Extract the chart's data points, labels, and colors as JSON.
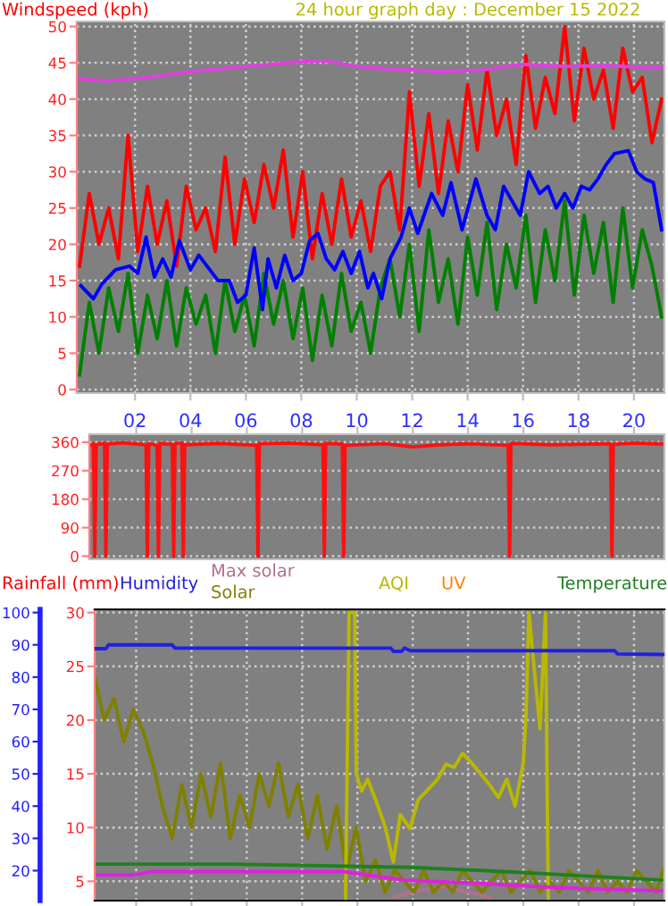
{
  "chart_data": [
    {
      "type": "line",
      "title": "24 hour graph day : December 15 2022",
      "ylabel": "Windspeed (kph)",
      "xlim": [
        -0.1,
        21.1
      ],
      "ylim": [
        -0.5,
        50.7
      ],
      "xticks": [
        {
          "value": 2,
          "label": "02"
        },
        {
          "value": 4,
          "label": "04"
        },
        {
          "value": 6,
          "label": "06"
        },
        {
          "value": 8,
          "label": "08"
        },
        {
          "value": 10,
          "label": "10"
        },
        {
          "value": 12,
          "label": "12"
        },
        {
          "value": 14,
          "label": "14"
        },
        {
          "value": 16,
          "label": "16"
        },
        {
          "value": 18,
          "label": "18"
        },
        {
          "value": 20,
          "label": "20"
        }
      ],
      "yticks": [
        0,
        5,
        10,
        15,
        20,
        25,
        30,
        35,
        40,
        45,
        50
      ],
      "grid": true,
      "x": [
        0,
        0.35,
        0.7,
        1.05,
        1.4,
        1.75,
        2.1,
        2.45,
        2.8,
        3.15,
        3.5,
        3.85,
        4.2,
        4.55,
        4.9,
        5.25,
        5.6,
        5.95,
        6.3,
        6.65,
        7,
        7.35,
        7.7,
        8.05,
        8.4,
        8.75,
        9.1,
        9.45,
        9.8,
        10.15,
        10.5,
        10.85,
        11.2,
        11.55,
        11.9,
        12.25,
        12.6,
        12.95,
        13.3,
        13.65,
        14,
        14.35,
        14.7,
        15.05,
        15.4,
        15.75,
        16.1,
        16.45,
        16.8,
        17.15,
        17.5,
        17.85,
        18.2,
        18.55,
        18.9,
        19.25,
        19.6,
        19.95,
        20.3,
        20.65,
        21
      ],
      "series": [
        {
          "color": "#ff0000",
          "values": [
            17,
            27,
            20,
            25,
            18,
            35,
            19,
            28,
            20,
            26,
            17,
            28,
            22,
            25,
            19,
            32,
            20,
            29,
            23,
            31,
            25,
            33,
            21,
            30,
            18,
            27,
            20,
            29,
            21,
            26,
            19,
            28,
            30,
            22,
            41,
            28,
            38,
            27,
            37,
            30,
            42,
            33,
            44,
            35,
            40,
            31,
            46,
            36,
            43,
            38,
            50,
            37,
            47,
            40,
            44,
            36,
            47,
            41,
            43,
            34,
            40
          ]
        },
        {
          "color": "#008000",
          "values": [
            2,
            12,
            5,
            14,
            8,
            16,
            5,
            13,
            7,
            15,
            6,
            14,
            9,
            13,
            5,
            15,
            8,
            13,
            6,
            16,
            9,
            15,
            7,
            14,
            4,
            13,
            6,
            16,
            8,
            12,
            5,
            14,
            18,
            10,
            20,
            8,
            22,
            12,
            18,
            9,
            21,
            13,
            23,
            11,
            20,
            14,
            24,
            12,
            22,
            15,
            26,
            13,
            24,
            16,
            23,
            12,
            25,
            14,
            22,
            17,
            10
          ]
        },
        {
          "color": "#0000ff",
          "x": [
            0.05,
            0.5,
            0.8,
            1.3,
            1.8,
            2.1,
            2.4,
            2.7,
            3.0,
            3.3,
            3.6,
            4.0,
            4.3,
            4.6,
            5.0,
            5.4,
            5.7,
            6.0,
            6.3,
            6.6,
            6.8,
            7.1,
            7.4,
            7.7,
            8.0,
            8.3,
            8.6,
            8.9,
            9.2,
            9.5,
            9.8,
            10.1,
            10.4,
            10.6,
            10.9,
            11.2,
            11.6,
            11.9,
            12.2,
            12.7,
            13.1,
            13.4,
            13.8,
            14.3,
            14.7,
            15.0,
            15.3,
            15.6,
            15.9,
            16.2,
            16.6,
            16.9,
            17.2,
            17.5,
            17.8,
            18.1,
            18.4,
            18.7,
            19.0,
            19.3,
            19.8,
            20.1,
            20.4,
            20.7,
            21.0
          ],
          "values": [
            14.3,
            12.5,
            14.5,
            16.5,
            17,
            16,
            21,
            15.5,
            18,
            15.5,
            20.5,
            16.5,
            18.5,
            17,
            15,
            15,
            12,
            13,
            19.5,
            11,
            18,
            14,
            18.5,
            15,
            16,
            20.5,
            21.5,
            18,
            16.5,
            19,
            16,
            19,
            14,
            16,
            12.5,
            18,
            21,
            25,
            21.5,
            27,
            24,
            28.5,
            22,
            29,
            24,
            22,
            28,
            26,
            24,
            30,
            27,
            28,
            25,
            27,
            25,
            28,
            27.5,
            29,
            31,
            32.5,
            32.9,
            30,
            29,
            28.5,
            22
          ]
        },
        {
          "color": "#e040e0",
          "x": [
            0,
            1,
            2.5,
            4,
            6,
            7.5,
            8.8,
            10,
            11,
            13,
            14.5,
            16,
            17.5,
            19,
            21
          ],
          "values": [
            42.8,
            42.5,
            43,
            43.8,
            44.5,
            45,
            45.3,
            44.5,
            44.2,
            43.8,
            44,
            44.8,
            44.5,
            44.6,
            44.3
          ]
        }
      ]
    },
    {
      "type": "line",
      "xlim": [
        0.3,
        21.1
      ],
      "ylim": [
        -10,
        385
      ],
      "yticks": [
        0,
        90,
        180,
        270,
        360
      ],
      "grid": "y",
      "tick_labels": "y",
      "xticks": [
        2,
        4,
        6,
        8,
        10,
        12,
        14,
        16,
        18,
        20
      ],
      "series": [
        {
          "color": "#ff1010",
          "x": [
            0.35,
            0.45,
            0.5,
            0.55,
            0.85,
            0.9,
            0.95,
            1.5,
            2.35,
            2.4,
            2.45,
            2.75,
            2.8,
            2.85,
            3.3,
            3.35,
            3.4,
            3.65,
            3.7,
            3.75,
            5,
            6.35,
            6.4,
            6.45,
            7.5,
            8.75,
            8.8,
            8.85,
            9.45,
            9.5,
            9.55,
            11,
            12,
            13,
            14,
            15.45,
            15.5,
            15.55,
            17,
            19.15,
            19.2,
            19.25,
            20,
            21.1
          ],
          "values": [
            350,
            355,
            0,
            352,
            356,
            0,
            354,
            358,
            352,
            0,
            355,
            350,
            0,
            356,
            353,
            0,
            355,
            357,
            0,
            352,
            356,
            350,
            0,
            355,
            357,
            352,
            0,
            356,
            354,
            0,
            350,
            355,
            345,
            352,
            355,
            350,
            0,
            356,
            352,
            355,
            0,
            353,
            357,
            354
          ]
        }
      ]
    },
    {
      "type": "line",
      "ylabel": "Rainfall (mm)",
      "xlim": [
        0.5,
        21.1
      ],
      "ylim": [
        3.2,
        30.3
      ],
      "y2lim": [
        10.7,
        101
      ],
      "xticks": [
        2,
        4,
        6,
        8,
        10,
        12,
        14,
        16,
        18,
        20
      ],
      "yticks": [
        5,
        10,
        15,
        20,
        25,
        30
      ],
      "y2ticks": [
        20,
        30,
        40,
        50,
        60,
        70,
        80,
        90,
        100
      ],
      "grid": true,
      "tick_labels": "y",
      "legend": "top",
      "annotations": [
        "UV"
      ],
      "x": [
        0.5,
        0.85,
        1.2,
        1.55,
        1.9,
        2.25,
        2.6,
        2.95,
        3.3,
        3.65,
        4,
        4.35,
        4.7,
        5.05,
        5.4,
        5.75,
        6.1,
        6.45,
        6.8,
        7.15,
        7.5,
        7.85,
        8.2,
        8.55,
        8.9,
        9.25,
        9.6,
        9.95,
        10.3,
        10.65,
        11,
        11.35,
        11.7,
        12.05,
        12.4,
        12.75,
        13.1,
        13.45,
        13.8,
        14.15,
        14.5,
        14.85,
        15.2,
        15.55,
        15.9,
        16.25,
        16.6,
        16.95,
        17.3,
        17.65,
        18,
        18.35,
        18.7,
        19.05,
        19.4,
        19.75,
        20.1,
        20.45,
        20.8,
        21.05
      ],
      "series": [
        {
          "name": "Humidity",
          "color": "#2020e0",
          "axis": "y2",
          "x": [
            0.5,
            0.9,
            1,
            3.3,
            3.4,
            11.2,
            11.3,
            11.6,
            11.7,
            11.9,
            19.3,
            19.4,
            21.1
          ],
          "values": [
            88.8,
            88.8,
            90,
            90,
            89,
            89,
            88,
            88,
            89,
            88.2,
            88.2,
            87.2,
            87.0
          ]
        },
        {
          "name": "Max solar",
          "color": "#b07090",
          "x": [
            11.3,
            12,
            13,
            14,
            14.8
          ],
          "values": [
            3.5,
            4.0,
            4.5,
            4.0,
            3.5
          ]
        },
        {
          "name": "Solar",
          "color": "#808000",
          "values": [
            24,
            20,
            22,
            18,
            21,
            19,
            16,
            12,
            9,
            14,
            10,
            15,
            11,
            16,
            9,
            13,
            10,
            15,
            12,
            16,
            11,
            14,
            9,
            13,
            8,
            12,
            6,
            10,
            5,
            7,
            4,
            6,
            5,
            4,
            6,
            4,
            5,
            4,
            6,
            5,
            4,
            5,
            6,
            4,
            5,
            6,
            4,
            5,
            4,
            6,
            5,
            4,
            6,
            4,
            5,
            4,
            6,
            5,
            4,
            6
          ]
        },
        {
          "name": "AQI",
          "color": "#b8b800",
          "x": [
            9.57,
            9.7,
            9.9,
            9.96,
            10.15,
            10.37,
            10.7,
            11,
            11.3,
            11.55,
            11.9,
            12.2,
            12.5,
            12.9,
            13.2,
            13.5,
            13.8,
            14.1,
            14.45,
            14.8,
            15.1,
            15.4,
            15.7,
            16,
            16.1,
            16.2,
            16.6,
            16.8,
            16.9
          ],
          "values": [
            3.3,
            30,
            30,
            15.0,
            13.4,
            14.5,
            12.3,
            10.1,
            6.8,
            11.2,
            9.9,
            12.6,
            13.4,
            14.5,
            15.9,
            15.6,
            16.9,
            16.1,
            15.0,
            13.9,
            12.8,
            14.5,
            12.0,
            16.1,
            20.6,
            30,
            19.2,
            30,
            3.3
          ]
        },
        {
          "name": "Temperature",
          "color": "#208020",
          "x": [
            0.5,
            5.5,
            11.9,
            14.5,
            16.1,
            17.5,
            21.1
          ],
          "values": [
            6.6,
            6.6,
            6.3,
            6,
            5.8,
            5.6,
            5.1
          ]
        },
        {
          "color": "#e020e0",
          "x": [
            0.5,
            2,
            2.5,
            9.5,
            11.7,
            14.5,
            16.5,
            18.5,
            21.1
          ],
          "values": [
            5.6,
            5.6,
            5.9,
            5.9,
            5.1,
            4.8,
            4.5,
            4.3,
            4.1
          ]
        }
      ]
    }
  ]
}
